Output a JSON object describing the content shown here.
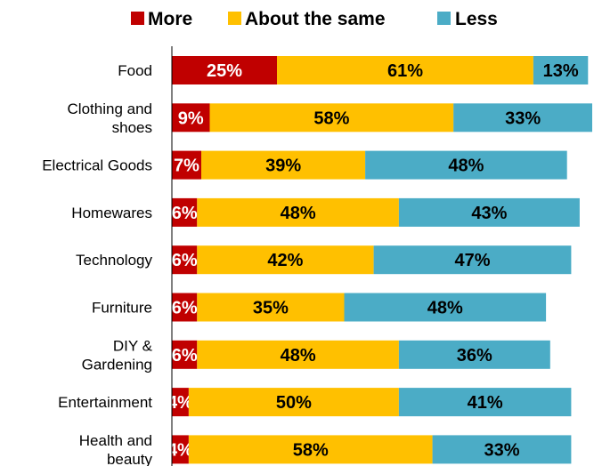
{
  "chart_data": {
    "type": "bar",
    "orientation": "horizontal",
    "stacked": true,
    "categories": [
      "Food",
      "Clothing and\nshoes",
      "Electrical Goods",
      "Homewares",
      "Technology",
      "Furniture",
      "DIY &\nGardening",
      "Entertainment",
      "Health and\nbeauty"
    ],
    "series": [
      {
        "name": "More",
        "color": "#C00000",
        "values": [
          25,
          9,
          7,
          6,
          6,
          6,
          6,
          4,
          4
        ],
        "labels": [
          "25%",
          "9%",
          "7%",
          "6%",
          "6%",
          "6%",
          "6%",
          "4%",
          "4%"
        ]
      },
      {
        "name": "About the same",
        "color": "#FFC000",
        "values": [
          61,
          58,
          39,
          48,
          42,
          35,
          48,
          50,
          58
        ],
        "labels": [
          "61%",
          "58%",
          "39%",
          "48%",
          "42%",
          "35%",
          "48%",
          "50%",
          "58%"
        ]
      },
      {
        "name": "Less",
        "color": "#4BACC6",
        "values": [
          13,
          33,
          48,
          43,
          47,
          48,
          36,
          41,
          33
        ],
        "labels": [
          "13%",
          "33%",
          "48%",
          "43%",
          "47%",
          "48%",
          "36%",
          "41%",
          "33%"
        ]
      }
    ],
    "xlim": [
      0,
      100
    ],
    "legend_position": "top",
    "grid": false
  }
}
